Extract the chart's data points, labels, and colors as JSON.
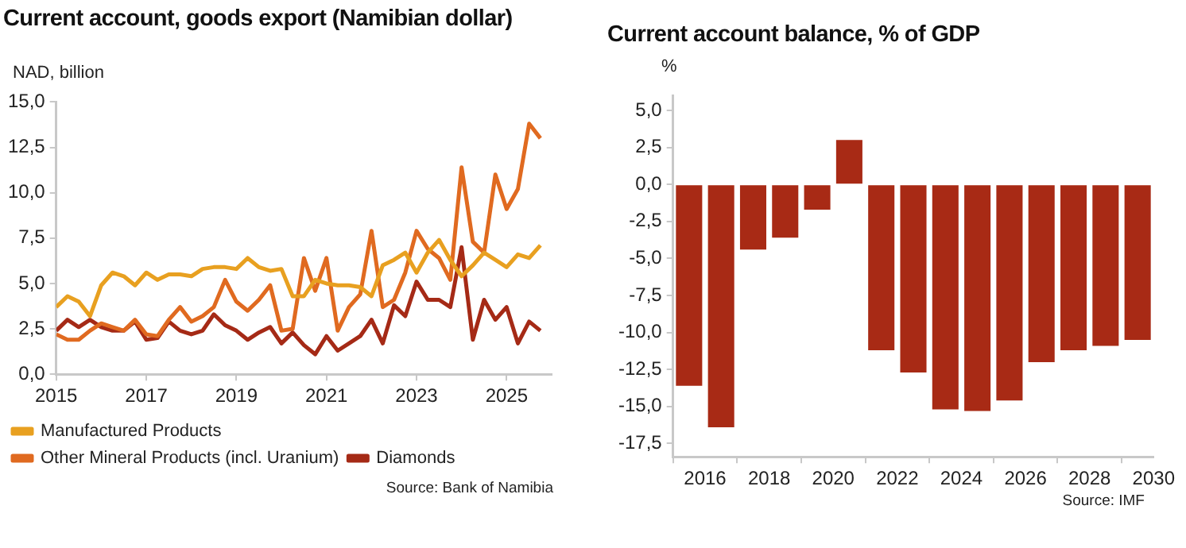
{
  "chart_data": [
    {
      "type": "line",
      "title": "Current account, goods export (Namibian dollar)",
      "ylabel": "NAD, billion",
      "x": [
        2015,
        2015.25,
        2015.5,
        2015.75,
        2016,
        2016.25,
        2016.5,
        2016.75,
        2017,
        2017.25,
        2017.5,
        2017.75,
        2018,
        2018.25,
        2018.5,
        2018.75,
        2019,
        2019.25,
        2019.5,
        2019.75,
        2020,
        2020.25,
        2020.5,
        2020.75,
        2021,
        2021.25,
        2021.5,
        2021.75,
        2022,
        2022.25,
        2022.5,
        2022.75,
        2023,
        2023.25,
        2023.5,
        2023.75,
        2024,
        2024.25,
        2024.5,
        2024.75,
        2025,
        2025.25,
        2025.5,
        2025.75
      ],
      "series": [
        {
          "name": "Manufactured Products",
          "color": "#e8a020",
          "values": [
            3.7,
            4.3,
            4.0,
            3.2,
            4.9,
            5.6,
            5.4,
            4.9,
            5.6,
            5.2,
            5.5,
            5.5,
            5.4,
            5.8,
            5.9,
            5.9,
            5.8,
            6.4,
            5.9,
            5.7,
            5.8,
            4.3,
            4.3,
            5.2,
            5.0,
            4.9,
            4.9,
            4.8,
            4.3,
            6.0,
            6.3,
            6.7,
            5.6,
            6.7,
            7.4,
            6.3,
            5.4,
            6.0,
            6.7,
            6.3,
            5.9,
            6.6,
            6.4,
            7.1
          ]
        },
        {
          "name": "Other Mineral Products (incl. Uranium)",
          "color": "#e06a20",
          "values": [
            2.2,
            1.9,
            1.9,
            2.4,
            2.8,
            2.6,
            2.4,
            3.0,
            2.2,
            2.1,
            3.0,
            3.7,
            2.9,
            3.2,
            3.7,
            5.2,
            4.0,
            3.5,
            4.1,
            4.9,
            2.4,
            2.5,
            6.4,
            4.6,
            6.4,
            2.4,
            3.7,
            4.4,
            7.9,
            3.7,
            4.1,
            5.6,
            7.9,
            6.9,
            6.4,
            5.2,
            11.4,
            7.3,
            6.7,
            11.0,
            9.1,
            10.2,
            13.8,
            13.0
          ]
        },
        {
          "name": "Diamonds",
          "color": "#a52a16",
          "values": [
            2.4,
            3.0,
            2.6,
            3.0,
            2.6,
            2.4,
            2.4,
            2.9,
            1.9,
            2.0,
            2.9,
            2.4,
            2.2,
            2.4,
            3.3,
            2.7,
            2.4,
            1.9,
            2.3,
            2.6,
            1.7,
            2.3,
            1.6,
            1.1,
            2.1,
            1.3,
            1.7,
            2.1,
            3.0,
            1.7,
            3.8,
            3.2,
            5.1,
            4.1,
            4.1,
            3.7,
            7.0,
            1.9,
            4.1,
            3.0,
            3.7,
            1.7,
            2.9,
            2.4
          ]
        }
      ],
      "xlim": [
        2015,
        2026
      ],
      "xticks": [
        2015,
        2017,
        2019,
        2021,
        2023,
        2025
      ],
      "ylim": [
        0,
        15
      ],
      "yticks": [
        {
          "value": 0,
          "label": "0,0"
        },
        {
          "value": 2.5,
          "label": "2,5"
        },
        {
          "value": 5,
          "label": "5,0"
        },
        {
          "value": 7.5,
          "label": "7,5"
        },
        {
          "value": 10,
          "label": "10,0"
        },
        {
          "value": 12.5,
          "label": "12,5"
        },
        {
          "value": 15,
          "label": "15,0"
        }
      ],
      "grid": false,
      "legend": "bottom",
      "marker": "none",
      "line_style": "solid",
      "annotations": [
        "Source: Bank of Namibia"
      ]
    },
    {
      "type": "bar",
      "title": "Current account balance, % of GDP",
      "ylabel": "%",
      "x": [
        2015.5,
        2016.5,
        2017.5,
        2018.5,
        2019.5,
        2020.5,
        2021.5,
        2022.5,
        2023.5,
        2024.5,
        2025.5,
        2026.5,
        2027.5,
        2028.5,
        2029.5
      ],
      "series": [
        {
          "color": "#a82a15",
          "values": [
            -13.6,
            -16.4,
            -4.4,
            -3.6,
            -1.7,
            3.0,
            -11.2,
            -12.7,
            -15.2,
            -15.3,
            -14.6,
            -12.0,
            -11.2,
            -10.9,
            -10.5
          ]
        }
      ],
      "xlim": [
        2015,
        2030
      ],
      "xticks": [
        2016,
        2018,
        2020,
        2022,
        2024,
        2026,
        2028,
        2030
      ],
      "ylim": [
        -18.4,
        6
      ],
      "yticks": [
        {
          "value": -17.5,
          "label": "-17,5"
        },
        {
          "value": -15,
          "label": "-15,0"
        },
        {
          "value": -12.5,
          "label": "-12,5"
        },
        {
          "value": -10,
          "label": "-10,0"
        },
        {
          "value": -7.5,
          "label": "-7,5"
        },
        {
          "value": -5,
          "label": "-5,0"
        },
        {
          "value": -2.5,
          "label": "-2,5"
        },
        {
          "value": 0,
          "label": "0,0"
        },
        {
          "value": 2.5,
          "label": "2,5"
        },
        {
          "value": 5,
          "label": "5,0"
        }
      ],
      "grid": false,
      "legend": false,
      "annotations": [
        "Source: IMF"
      ]
    }
  ]
}
